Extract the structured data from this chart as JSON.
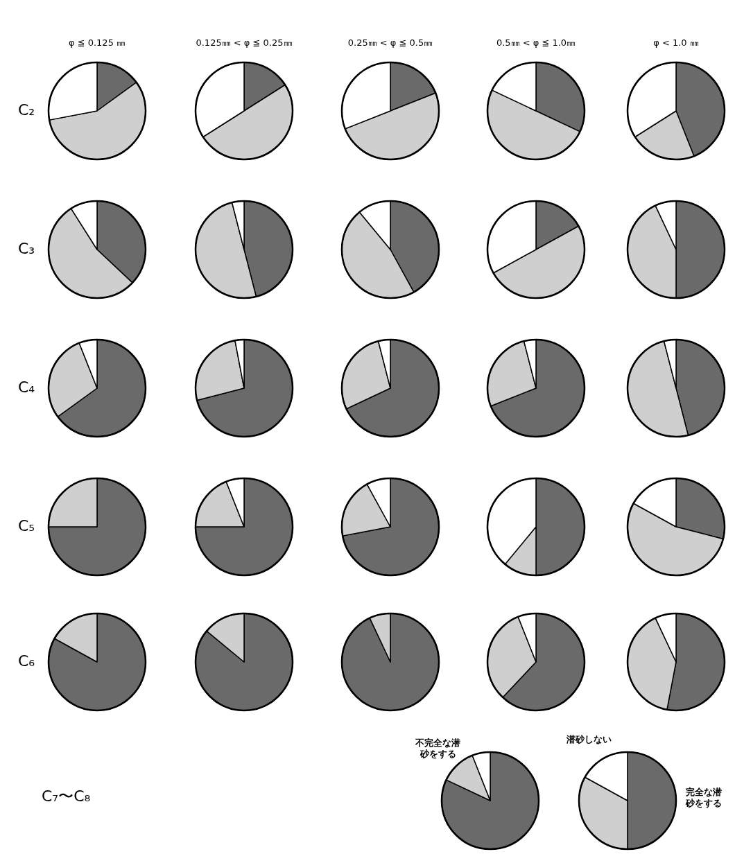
{
  "chart_data": [
    {
      "type": "pie",
      "title": "φ ≦ 0.125 ㎜",
      "ylabel": "C₂",
      "categories": [
        null,
        null,
        null
      ],
      "values": [
        15,
        57,
        28
      ],
      "colors": [
        "#6a6a6a",
        "#cfcfcf",
        "#ffffff"
      ]
    },
    {
      "type": "pie",
      "title": "0.125㎜ < φ ≦ 0.25㎜",
      "categories": [
        null,
        null,
        null
      ],
      "values": [
        16,
        50,
        34
      ],
      "colors": [
        "#6a6a6a",
        "#cfcfcf",
        "#ffffff"
      ]
    },
    {
      "type": "pie",
      "title": "0.25㎜ < φ ≦ 0.5㎜",
      "categories": [
        null,
        null,
        null
      ],
      "values": [
        19,
        50,
        31
      ],
      "colors": [
        "#6a6a6a",
        "#cfcfcf",
        "#ffffff"
      ]
    },
    {
      "type": "pie",
      "title": "0.5㎜ < φ ≦ 1.0㎜",
      "categories": [
        null,
        null,
        null
      ],
      "values": [
        32,
        50,
        18
      ],
      "colors": [
        "#6a6a6a",
        "#cfcfcf",
        "#ffffff"
      ]
    },
    {
      "type": "pie",
      "title": "φ < 1.0 ㎜",
      "categories": [
        null,
        null,
        null
      ],
      "values": [
        44,
        22,
        34
      ],
      "colors": [
        "#6a6a6a",
        "#cfcfcf",
        "#ffffff"
      ]
    },
    {
      "type": "pie",
      "ylabel": "C₃",
      "categories": [
        null,
        null,
        null
      ],
      "values": [
        37,
        54,
        9
      ],
      "colors": [
        "#6a6a6a",
        "#cfcfcf",
        "#ffffff"
      ]
    },
    {
      "type": "pie",
      "categories": [
        null,
        null,
        null
      ],
      "values": [
        46,
        50,
        4
      ],
      "colors": [
        "#6a6a6a",
        "#cfcfcf",
        "#ffffff"
      ]
    },
    {
      "type": "pie",
      "categories": [
        null,
        null,
        null
      ],
      "values": [
        42,
        47,
        11
      ],
      "colors": [
        "#6a6a6a",
        "#cfcfcf",
        "#ffffff"
      ]
    },
    {
      "type": "pie",
      "categories": [
        null,
        null,
        null
      ],
      "values": [
        17,
        50,
        33
      ],
      "colors": [
        "#6a6a6a",
        "#cfcfcf",
        "#ffffff"
      ]
    },
    {
      "type": "pie",
      "categories": [
        null,
        null,
        null
      ],
      "values": [
        50,
        43,
        7
      ],
      "colors": [
        "#6a6a6a",
        "#cfcfcf",
        "#ffffff"
      ]
    },
    {
      "type": "pie",
      "ylabel": "C₄",
      "categories": [
        null,
        null,
        null
      ],
      "values": [
        65,
        29,
        6
      ],
      "colors": [
        "#6a6a6a",
        "#cfcfcf",
        "#ffffff"
      ]
    },
    {
      "type": "pie",
      "categories": [
        null,
        null,
        null
      ],
      "values": [
        71,
        26,
        3
      ],
      "colors": [
        "#6a6a6a",
        "#cfcfcf",
        "#ffffff"
      ]
    },
    {
      "type": "pie",
      "categories": [
        null,
        null,
        null
      ],
      "values": [
        68,
        28,
        4
      ],
      "colors": [
        "#6a6a6a",
        "#cfcfcf",
        "#ffffff"
      ]
    },
    {
      "type": "pie",
      "categories": [
        null,
        null,
        null
      ],
      "values": [
        69,
        27,
        4
      ],
      "colors": [
        "#6a6a6a",
        "#cfcfcf",
        "#ffffff"
      ]
    },
    {
      "type": "pie",
      "categories": [
        null,
        null,
        null
      ],
      "values": [
        46,
        50,
        4
      ],
      "colors": [
        "#6a6a6a",
        "#cfcfcf",
        "#ffffff"
      ]
    },
    {
      "type": "pie",
      "ylabel": "C₅",
      "categories": [
        null,
        null,
        null
      ],
      "values": [
        75,
        25,
        0
      ],
      "colors": [
        "#6a6a6a",
        "#cfcfcf",
        "#ffffff"
      ]
    },
    {
      "type": "pie",
      "categories": [
        null,
        null,
        null
      ],
      "values": [
        75,
        19,
        6
      ],
      "colors": [
        "#6a6a6a",
        "#cfcfcf",
        "#ffffff"
      ]
    },
    {
      "type": "pie",
      "categories": [
        null,
        null,
        null
      ],
      "values": [
        72,
        20,
        8
      ],
      "colors": [
        "#6a6a6a",
        "#cfcfcf",
        "#ffffff"
      ]
    },
    {
      "type": "pie",
      "categories": [
        null,
        null,
        null
      ],
      "values": [
        50,
        11,
        39
      ],
      "colors": [
        "#6a6a6a",
        "#cfcfcf",
        "#ffffff"
      ]
    },
    {
      "type": "pie",
      "categories": [
        null,
        null,
        null
      ],
      "values": [
        29,
        54,
        17
      ],
      "colors": [
        "#6a6a6a",
        "#cfcfcf",
        "#ffffff"
      ]
    },
    {
      "type": "pie",
      "ylabel": "C₆",
      "categories": [
        null,
        null,
        null
      ],
      "values": [
        83,
        17,
        0
      ],
      "colors": [
        "#6a6a6a",
        "#cfcfcf",
        "#ffffff"
      ]
    },
    {
      "type": "pie",
      "categories": [
        null,
        null,
        null
      ],
      "values": [
        86,
        14,
        0
      ],
      "colors": [
        "#6a6a6a",
        "#cfcfcf",
        "#ffffff"
      ]
    },
    {
      "type": "pie",
      "categories": [
        null,
        null,
        null
      ],
      "values": [
        93,
        7,
        0
      ],
      "colors": [
        "#6a6a6a",
        "#cfcfcf",
        "#ffffff"
      ]
    },
    {
      "type": "pie",
      "categories": [
        null,
        null,
        null
      ],
      "values": [
        62,
        32,
        6
      ],
      "colors": [
        "#6a6a6a",
        "#cfcfcf",
        "#ffffff"
      ]
    },
    {
      "type": "pie",
      "categories": [
        null,
        null,
        null
      ],
      "values": [
        53,
        40,
        7
      ],
      "colors": [
        "#6a6a6a",
        "#cfcfcf",
        "#ffffff"
      ]
    },
    {
      "type": "pie",
      "ylabel": "C₇〜C₈",
      "categories": [
        null,
        "不完全な潜砂をする",
        null
      ],
      "values": [
        82,
        12,
        6
      ],
      "colors": [
        "#6a6a6a",
        "#cfcfcf",
        "#ffffff"
      ]
    },
    {
      "type": "pie",
      "categories": [
        "完全な潜砂をする",
        null,
        "潜砂しない"
      ],
      "values": [
        50,
        33,
        17
      ],
      "colors": [
        "#6a6a6a",
        "#cfcfcf",
        "#ffffff"
      ]
    }
  ]
}
